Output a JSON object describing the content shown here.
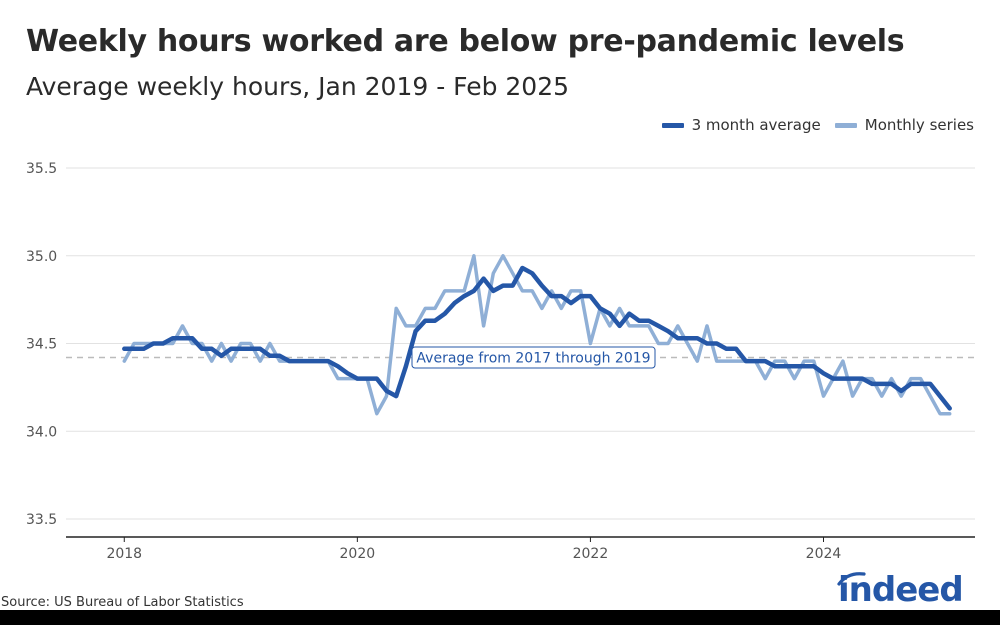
{
  "chart_data": {
    "type": "line",
    "title": "Weekly hours worked are below pre-pandemic levels",
    "subtitle": "Average weekly hours, Jan 2019 - Feb 2025",
    "xlabel": "",
    "ylabel": "",
    "ylim": [
      33.5,
      35.5
    ],
    "yticks": [
      "35.5",
      "35.0",
      "34.5",
      "34.0",
      "33.5"
    ],
    "xticks": [
      "2018",
      "2020",
      "2022",
      "2024"
    ],
    "xrange_years": [
      2017.5,
      2025.3
    ],
    "grid": true,
    "legend_position": "top-right",
    "reference_line": {
      "value": 34.42,
      "label": "Average from 2017 through 2019"
    },
    "series": [
      {
        "name": "3 month average",
        "color": "#2557a7",
        "start": "2018-01",
        "values": [
          34.47,
          34.47,
          34.47,
          34.5,
          34.5,
          34.53,
          34.53,
          34.53,
          34.47,
          34.47,
          34.43,
          34.47,
          34.47,
          34.47,
          34.47,
          34.43,
          34.43,
          34.4,
          34.4,
          34.4,
          34.4,
          34.4,
          34.37,
          34.33,
          34.3,
          34.3,
          34.3,
          34.23,
          34.2,
          34.37,
          34.57,
          34.63,
          34.63,
          34.67,
          34.73,
          34.77,
          34.8,
          34.87,
          34.8,
          34.83,
          34.83,
          34.93,
          34.9,
          34.83,
          34.77,
          34.77,
          34.73,
          34.77,
          34.77,
          34.7,
          34.67,
          34.6,
          34.67,
          34.63,
          34.63,
          34.6,
          34.57,
          34.53,
          34.53,
          34.53,
          34.5,
          34.5,
          34.47,
          34.47,
          34.4,
          34.4,
          34.4,
          34.37,
          34.37,
          34.37,
          34.37,
          34.37,
          34.33,
          34.3,
          34.3,
          34.3,
          34.3,
          34.27,
          34.27,
          34.27,
          34.23,
          34.27,
          34.27,
          34.27,
          34.2,
          34.13
        ]
      },
      {
        "name": "Monthly series",
        "color": "#8fafd6",
        "start": "2018-01",
        "values": [
          34.4,
          34.5,
          34.5,
          34.5,
          34.5,
          34.5,
          34.6,
          34.5,
          34.5,
          34.4,
          34.5,
          34.4,
          34.5,
          34.5,
          34.4,
          34.5,
          34.4,
          34.4,
          34.4,
          34.4,
          34.4,
          34.4,
          34.3,
          34.3,
          34.3,
          34.3,
          34.1,
          34.2,
          34.7,
          34.6,
          34.6,
          34.7,
          34.7,
          34.8,
          34.8,
          34.8,
          35.0,
          34.6,
          34.9,
          35.0,
          34.9,
          34.8,
          34.8,
          34.7,
          34.8,
          34.7,
          34.8,
          34.8,
          34.5,
          34.7,
          34.6,
          34.7,
          34.6,
          34.6,
          34.6,
          34.5,
          34.5,
          34.6,
          34.5,
          34.4,
          34.6,
          34.4,
          34.4,
          34.4,
          34.4,
          34.4,
          34.3,
          34.4,
          34.4,
          34.3,
          34.4,
          34.4,
          34.2,
          34.3,
          34.4,
          34.2,
          34.3,
          34.3,
          34.2,
          34.3,
          34.2,
          34.3,
          34.3,
          34.2,
          34.1,
          34.1
        ]
      }
    ]
  },
  "source_text": "Source: US Bureau of Labor Statistics",
  "logo": {
    "text": "indeed",
    "color": "#2557a7"
  }
}
